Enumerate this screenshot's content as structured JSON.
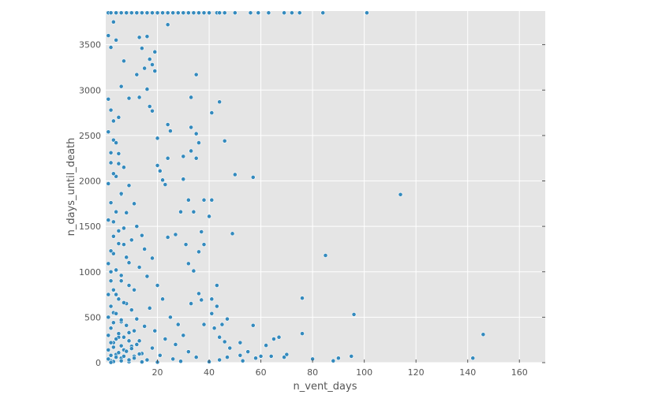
{
  "chart_data": {
    "type": "scatter",
    "title": "",
    "xlabel": "n_vent_days",
    "ylabel": "n_days_until_death",
    "xlim": [
      0,
      170
    ],
    "ylim": [
      0,
      3870
    ],
    "x_ticks": [
      20,
      40,
      60,
      80,
      100,
      120,
      140,
      160
    ],
    "y_ticks": [
      0,
      500,
      1000,
      1500,
      2000,
      2500,
      3000,
      3500
    ],
    "grid": true,
    "background": "#e5e5e5",
    "point_color": "#348abd",
    "series": [
      {
        "points": [
          [
            1,
            3850
          ],
          [
            2,
            3850
          ],
          [
            4,
            3850
          ],
          [
            6,
            3850
          ],
          [
            8,
            3850
          ],
          [
            10,
            3850
          ],
          [
            12,
            3850
          ],
          [
            14,
            3850
          ],
          [
            16,
            3850
          ],
          [
            18,
            3850
          ],
          [
            20,
            3850
          ],
          [
            22,
            3850
          ],
          [
            24,
            3850
          ],
          [
            26,
            3850
          ],
          [
            28,
            3850
          ],
          [
            30,
            3850
          ],
          [
            32,
            3850
          ],
          [
            34,
            3850
          ],
          [
            36,
            3850
          ],
          [
            38,
            3850
          ],
          [
            40,
            3850
          ],
          [
            43,
            3850
          ],
          [
            44,
            3850
          ],
          [
            46,
            3850
          ],
          [
            50,
            3850
          ],
          [
            56,
            3850
          ],
          [
            59,
            3850
          ],
          [
            63,
            3850
          ],
          [
            69,
            3850
          ],
          [
            72,
            3850
          ],
          [
            75,
            3850
          ],
          [
            84,
            3850
          ],
          [
            101,
            3850
          ],
          [
            3,
            3750
          ],
          [
            24,
            3720
          ],
          [
            1,
            3600
          ],
          [
            4,
            3550
          ],
          [
            13,
            3580
          ],
          [
            16,
            3590
          ],
          [
            2,
            3470
          ],
          [
            14,
            3460
          ],
          [
            19,
            3420
          ],
          [
            7,
            3320
          ],
          [
            17,
            3340
          ],
          [
            18,
            3280
          ],
          [
            15,
            3240
          ],
          [
            19,
            3210
          ],
          [
            12,
            3170
          ],
          [
            35,
            3170
          ],
          [
            6,
            3040
          ],
          [
            16,
            3010
          ],
          [
            9,
            2910
          ],
          [
            13,
            2920
          ],
          [
            33,
            2920
          ],
          [
            44,
            2870
          ],
          [
            17,
            2820
          ],
          [
            41,
            2750
          ],
          [
            5,
            2700
          ],
          [
            18,
            2770
          ],
          [
            24,
            2620
          ],
          [
            33,
            2590
          ],
          [
            25,
            2550
          ],
          [
            35,
            2520
          ],
          [
            46,
            2440
          ],
          [
            36,
            2420
          ],
          [
            20,
            2470
          ],
          [
            33,
            2330
          ],
          [
            30,
            2270
          ],
          [
            35,
            2250
          ],
          [
            24,
            2250
          ],
          [
            20,
            2170
          ],
          [
            21,
            2110
          ],
          [
            50,
            2070
          ],
          [
            57,
            2040
          ],
          [
            22,
            2010
          ],
          [
            30,
            2020
          ],
          [
            23,
            1960
          ],
          [
            38,
            1790
          ],
          [
            41,
            1790
          ],
          [
            32,
            1790
          ],
          [
            40,
            1610
          ],
          [
            34,
            1660
          ],
          [
            29,
            1660
          ],
          [
            37,
            1440
          ],
          [
            49,
            1420
          ],
          [
            24,
            1380
          ],
          [
            27,
            1410
          ],
          [
            38,
            1300
          ],
          [
            31,
            1300
          ],
          [
            36,
            1220
          ],
          [
            32,
            1090
          ],
          [
            34,
            1010
          ],
          [
            43,
            850
          ],
          [
            85,
            1180
          ],
          [
            114,
            1850
          ],
          [
            76,
            710
          ],
          [
            96,
            530
          ],
          [
            76,
            320
          ],
          [
            146,
            310
          ],
          [
            57,
            410
          ],
          [
            142,
            50
          ],
          [
            95,
            70
          ],
          [
            90,
            50
          ],
          [
            88,
            20
          ],
          [
            80,
            40
          ],
          [
            69,
            60
          ],
          [
            65,
            260
          ],
          [
            67,
            280
          ],
          [
            62,
            190
          ],
          [
            70,
            90
          ],
          [
            64,
            70
          ],
          [
            58,
            50
          ],
          [
            53,
            20
          ],
          [
            47,
            480
          ],
          [
            45,
            420
          ],
          [
            42,
            380
          ],
          [
            41,
            540
          ],
          [
            41,
            700
          ],
          [
            43,
            620
          ],
          [
            37,
            690
          ],
          [
            36,
            760
          ],
          [
            33,
            650
          ],
          [
            38,
            420
          ],
          [
            44,
            280
          ],
          [
            46,
            230
          ],
          [
            52,
            220
          ],
          [
            48,
            160
          ],
          [
            55,
            120
          ],
          [
            60,
            70
          ],
          [
            52,
            80
          ],
          [
            47,
            60
          ],
          [
            44,
            30
          ],
          [
            40,
            10
          ],
          [
            3,
            2450
          ],
          [
            5,
            2300
          ],
          [
            2,
            2200
          ],
          [
            7,
            2150
          ],
          [
            4,
            2050
          ],
          [
            9,
            1950
          ],
          [
            6,
            1850
          ],
          [
            11,
            1750
          ],
          [
            8,
            1650
          ],
          [
            3,
            1550
          ],
          [
            12,
            1500
          ],
          [
            5,
            1450
          ],
          [
            14,
            1400
          ],
          [
            10,
            1350
          ],
          [
            7,
            1300
          ],
          [
            15,
            1250
          ],
          [
            3,
            1200
          ],
          [
            18,
            1150
          ],
          [
            9,
            1100
          ],
          [
            13,
            1050
          ],
          [
            2,
            1000
          ],
          [
            16,
            950
          ],
          [
            6,
            900
          ],
          [
            20,
            850
          ],
          [
            11,
            800
          ],
          [
            4,
            750
          ],
          [
            22,
            700
          ],
          [
            8,
            650
          ],
          [
            17,
            600
          ],
          [
            3,
            550
          ],
          [
            25,
            500
          ],
          [
            12,
            480
          ],
          [
            6,
            450
          ],
          [
            28,
            420
          ],
          [
            15,
            400
          ],
          [
            2,
            380
          ],
          [
            19,
            350
          ],
          [
            9,
            330
          ],
          [
            30,
            300
          ],
          [
            5,
            280
          ],
          [
            23,
            260
          ],
          [
            13,
            240
          ],
          [
            3,
            220
          ],
          [
            27,
            200
          ],
          [
            10,
            180
          ],
          [
            18,
            160
          ],
          [
            7,
            140
          ],
          [
            32,
            120
          ],
          [
            14,
            100
          ],
          [
            4,
            90
          ],
          [
            21,
            80
          ],
          [
            11,
            70
          ],
          [
            35,
            60
          ],
          [
            6,
            50
          ],
          [
            26,
            40
          ],
          [
            16,
            30
          ],
          [
            2,
            20
          ],
          [
            29,
            15
          ],
          [
            9,
            10
          ],
          [
            20,
            5
          ],
          [
            1,
            2900
          ],
          [
            2,
            2780
          ],
          [
            3,
            2660
          ],
          [
            1,
            2540
          ],
          [
            4,
            2420
          ],
          [
            2,
            2310
          ],
          [
            5,
            2190
          ],
          [
            3,
            2080
          ],
          [
            1,
            1970
          ],
          [
            6,
            1860
          ],
          [
            2,
            1760
          ],
          [
            4,
            1660
          ],
          [
            1,
            1570
          ],
          [
            7,
            1480
          ],
          [
            3,
            1390
          ],
          [
            5,
            1310
          ],
          [
            2,
            1230
          ],
          [
            8,
            1160
          ],
          [
            1,
            1090
          ],
          [
            4,
            1020
          ],
          [
            6,
            960
          ],
          [
            2,
            900
          ],
          [
            9,
            850
          ],
          [
            3,
            800
          ],
          [
            1,
            750
          ],
          [
            5,
            700
          ],
          [
            7,
            660
          ],
          [
            2,
            620
          ],
          [
            10,
            580
          ],
          [
            4,
            540
          ],
          [
            1,
            500
          ],
          [
            6,
            470
          ],
          [
            3,
            440
          ],
          [
            8,
            410
          ],
          [
            2,
            380
          ],
          [
            11,
            350
          ],
          [
            5,
            320
          ],
          [
            1,
            300
          ],
          [
            7,
            280
          ],
          [
            4,
            260
          ],
          [
            9,
            240
          ],
          [
            2,
            220
          ],
          [
            12,
            200
          ],
          [
            6,
            185
          ],
          [
            3,
            170
          ],
          [
            10,
            155
          ],
          [
            1,
            140
          ],
          [
            8,
            125
          ],
          [
            5,
            110
          ],
          [
            13,
            95
          ],
          [
            2,
            80
          ],
          [
            7,
            70
          ],
          [
            4,
            60
          ],
          [
            11,
            50
          ],
          [
            1,
            40
          ],
          [
            9,
            30
          ],
          [
            6,
            20
          ],
          [
            3,
            12
          ],
          [
            14,
            8
          ],
          [
            2,
            3
          ]
        ]
      }
    ]
  }
}
